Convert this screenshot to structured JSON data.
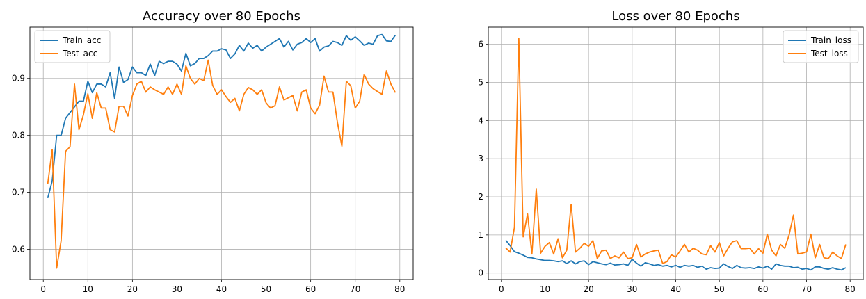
{
  "chart_data": [
    {
      "type": "line",
      "title": "Accuracy over 80 Epochs",
      "xlabel": "",
      "ylabel": "",
      "xlim": [
        -3,
        83
      ],
      "ylim": [
        0.547,
        0.99
      ],
      "xticks": [
        0,
        10,
        20,
        30,
        40,
        50,
        60,
        70,
        80
      ],
      "yticks": [
        0.6,
        0.7,
        0.8,
        0.9
      ],
      "ytick_labels": [
        "0.6",
        "0.7",
        "0.8",
        "0.9"
      ],
      "grid": true,
      "legend_position": "top-left",
      "x": [
        1,
        2,
        3,
        4,
        5,
        6,
        7,
        8,
        9,
        10,
        11,
        12,
        13,
        14,
        15,
        16,
        17,
        18,
        19,
        20,
        21,
        22,
        23,
        24,
        25,
        26,
        27,
        28,
        29,
        30,
        31,
        32,
        33,
        34,
        35,
        36,
        37,
        38,
        39,
        40,
        41,
        42,
        43,
        44,
        45,
        46,
        47,
        48,
        49,
        50,
        51,
        52,
        53,
        54,
        55,
        56,
        57,
        58,
        59,
        60,
        61,
        62,
        63,
        64,
        65,
        66,
        67,
        68,
        69,
        70,
        71,
        72,
        73,
        74,
        75,
        76,
        77,
        78,
        79
      ],
      "series": [
        {
          "name": "Train_acc",
          "color": "#1f77b4",
          "values": [
            0.69,
            0.72,
            0.8,
            0.8,
            0.83,
            0.84,
            0.85,
            0.86,
            0.86,
            0.895,
            0.875,
            0.89,
            0.89,
            0.885,
            0.91,
            0.865,
            0.92,
            0.893,
            0.898,
            0.92,
            0.91,
            0.91,
            0.905,
            0.925,
            0.905,
            0.93,
            0.926,
            0.93,
            0.93,
            0.925,
            0.913,
            0.944,
            0.922,
            0.926,
            0.935,
            0.935,
            0.94,
            0.948,
            0.948,
            0.952,
            0.95,
            0.935,
            0.943,
            0.958,
            0.948,
            0.962,
            0.953,
            0.958,
            0.948,
            0.955,
            0.96,
            0.965,
            0.97,
            0.955,
            0.965,
            0.95,
            0.96,
            0.963,
            0.97,
            0.963,
            0.97,
            0.948,
            0.955,
            0.957,
            0.965,
            0.963,
            0.958,
            0.975,
            0.967,
            0.973,
            0.966,
            0.958,
            0.962,
            0.96,
            0.975,
            0.977,
            0.966,
            0.965,
            0.976
          ]
        },
        {
          "name": "Test_acc",
          "color": "#ff7f0e",
          "values": [
            0.715,
            0.775,
            0.567,
            0.615,
            0.772,
            0.78,
            0.89,
            0.81,
            0.836,
            0.873,
            0.83,
            0.875,
            0.848,
            0.848,
            0.81,
            0.806,
            0.851,
            0.851,
            0.834,
            0.87,
            0.89,
            0.895,
            0.876,
            0.885,
            0.88,
            0.876,
            0.872,
            0.885,
            0.872,
            0.89,
            0.872,
            0.922,
            0.9,
            0.89,
            0.9,
            0.896,
            0.932,
            0.888,
            0.872,
            0.88,
            0.868,
            0.858,
            0.865,
            0.843,
            0.872,
            0.884,
            0.88,
            0.872,
            0.88,
            0.857,
            0.848,
            0.852,
            0.885,
            0.862,
            0.866,
            0.87,
            0.843,
            0.876,
            0.88,
            0.848,
            0.838,
            0.853,
            0.904,
            0.876,
            0.876,
            0.823,
            0.781,
            0.895,
            0.887,
            0.848,
            0.86,
            0.907,
            0.89,
            0.882,
            0.877,
            0.872,
            0.913,
            0.89,
            0.875
          ]
        }
      ]
    },
    {
      "type": "line",
      "title": "Loss over 80 Epochs",
      "xlabel": "",
      "ylabel": "",
      "xlim": [
        -3,
        83
      ],
      "ylim": [
        -0.17,
        6.45
      ],
      "xticks": [
        0,
        10,
        20,
        30,
        40,
        50,
        60,
        70,
        80
      ],
      "yticks": [
        0,
        1,
        2,
        3,
        4,
        5,
        6
      ],
      "ytick_labels": [
        "0",
        "1",
        "2",
        "3",
        "4",
        "5",
        "6"
      ],
      "grid": true,
      "legend_position": "top-right",
      "x": [
        1,
        2,
        3,
        4,
        5,
        6,
        7,
        8,
        9,
        10,
        11,
        12,
        13,
        14,
        15,
        16,
        17,
        18,
        19,
        20,
        21,
        22,
        23,
        24,
        25,
        26,
        27,
        28,
        29,
        30,
        31,
        32,
        33,
        34,
        35,
        36,
        37,
        38,
        39,
        40,
        41,
        42,
        43,
        44,
        45,
        46,
        47,
        48,
        49,
        50,
        51,
        52,
        53,
        54,
        55,
        56,
        57,
        58,
        59,
        60,
        61,
        62,
        63,
        64,
        65,
        66,
        67,
        68,
        69,
        70,
        71,
        72,
        73,
        74,
        75,
        76,
        77,
        78,
        79
      ],
      "series": [
        {
          "name": "Train_loss",
          "color": "#1f77b4",
          "values": [
            0.86,
            0.72,
            0.56,
            0.52,
            0.47,
            0.41,
            0.4,
            0.37,
            0.35,
            0.33,
            0.33,
            0.32,
            0.3,
            0.32,
            0.25,
            0.32,
            0.24,
            0.3,
            0.32,
            0.22,
            0.3,
            0.27,
            0.24,
            0.22,
            0.26,
            0.21,
            0.22,
            0.24,
            0.2,
            0.36,
            0.26,
            0.18,
            0.27,
            0.24,
            0.2,
            0.22,
            0.18,
            0.2,
            0.16,
            0.2,
            0.15,
            0.2,
            0.18,
            0.2,
            0.15,
            0.18,
            0.1,
            0.14,
            0.12,
            0.13,
            0.24,
            0.17,
            0.12,
            0.2,
            0.14,
            0.13,
            0.14,
            0.12,
            0.16,
            0.13,
            0.18,
            0.1,
            0.24,
            0.2,
            0.18,
            0.18,
            0.14,
            0.15,
            0.1,
            0.12,
            0.08,
            0.16,
            0.16,
            0.12,
            0.1,
            0.14,
            0.1,
            0.08,
            0.14
          ]
        },
        {
          "name": "Test_loss",
          "color": "#ff7f0e",
          "values": [
            0.66,
            0.55,
            1.2,
            6.15,
            0.95,
            1.55,
            0.5,
            2.2,
            0.52,
            0.7,
            0.8,
            0.5,
            0.9,
            0.4,
            0.6,
            1.8,
            0.55,
            0.65,
            0.78,
            0.7,
            0.85,
            0.38,
            0.58,
            0.6,
            0.38,
            0.45,
            0.4,
            0.55,
            0.38,
            0.4,
            0.75,
            0.42,
            0.5,
            0.55,
            0.58,
            0.6,
            0.25,
            0.3,
            0.48,
            0.42,
            0.58,
            0.75,
            0.55,
            0.65,
            0.6,
            0.5,
            0.48,
            0.72,
            0.55,
            0.8,
            0.45,
            0.65,
            0.82,
            0.85,
            0.64,
            0.64,
            0.65,
            0.5,
            0.64,
            0.52,
            1.02,
            0.6,
            0.45,
            0.75,
            0.65,
            1.0,
            1.52,
            0.5,
            0.52,
            0.55,
            1.02,
            0.4,
            0.75,
            0.4,
            0.38,
            0.55,
            0.45,
            0.38,
            0.75
          ]
        }
      ]
    }
  ]
}
